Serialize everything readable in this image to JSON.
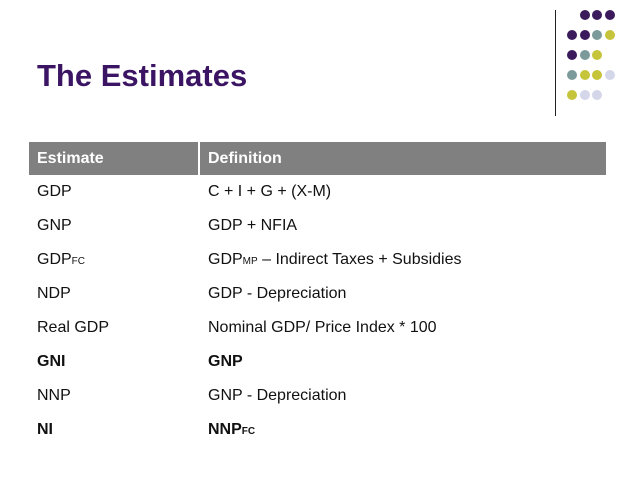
{
  "slide": {
    "title": "The Estimates"
  },
  "decor": {
    "colors": {
      "purple": "#3c1b5c",
      "teal": "#7d9a9b",
      "olive": "#c6c43a",
      "lavender": "#d4d6ea"
    }
  },
  "table": {
    "headers": [
      "Estimate",
      "Definition"
    ],
    "rows": [
      {
        "estimate": "GDP",
        "estimate_sub": "",
        "definition": "C + I + G + (X-M)",
        "definition_prefix": "",
        "definition_sub": "",
        "bold": false
      },
      {
        "estimate": "GNP",
        "estimate_sub": "",
        "definition": "GDP + NFIA",
        "definition_prefix": "",
        "definition_sub": "",
        "bold": false
      },
      {
        "estimate": "GDP",
        "estimate_sub": "FC",
        "definition": " – Indirect Taxes + Subsidies",
        "definition_prefix": "GDP",
        "definition_sub": "MP",
        "bold": false
      },
      {
        "estimate": "NDP",
        "estimate_sub": "",
        "definition": "GDP - Depreciation",
        "definition_prefix": "",
        "definition_sub": "",
        "bold": false
      },
      {
        "estimate": "Real GDP",
        "estimate_sub": "",
        "definition": "Nominal GDP/ Price Index * 100",
        "definition_prefix": "",
        "definition_sub": "",
        "bold": false
      },
      {
        "estimate": "GNI",
        "estimate_sub": "",
        "definition": "GNP",
        "definition_prefix": "",
        "definition_sub": "",
        "bold": true
      },
      {
        "estimate": "NNP",
        "estimate_sub": "",
        "definition": "GNP - Depreciation",
        "definition_prefix": "",
        "definition_sub": "",
        "bold": false
      },
      {
        "estimate": "NI",
        "estimate_sub": "",
        "definition": "",
        "definition_prefix": "NNP",
        "definition_sub": "FC",
        "bold": true
      }
    ]
  }
}
